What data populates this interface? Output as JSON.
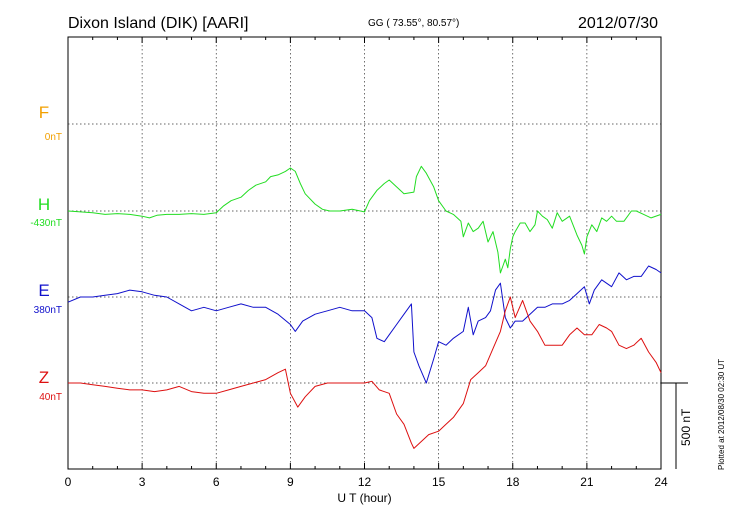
{
  "header": {
    "station": "Dixon Island (DIK)  [AARI]",
    "coords": "GG ( 73.55°,  80.57°)",
    "date": "2012/07/30"
  },
  "axis": {
    "xlabel": "U T (hour)",
    "ticks": [
      "0",
      "3",
      "6",
      "9",
      "12",
      "15",
      "18",
      "21",
      "24"
    ]
  },
  "scale": {
    "label": "500 nT"
  },
  "plotted": "Plotted at 2012/08/30 02:30 UT",
  "channels": [
    {
      "key": "F",
      "name": "F",
      "baseline": "0nT",
      "color": "#f2a000"
    },
    {
      "key": "H",
      "name": "H",
      "baseline": "-430nT",
      "color": "#22dd22"
    },
    {
      "key": "E",
      "name": "E",
      "baseline": "380nT",
      "color": "#1010cc"
    },
    {
      "key": "Z",
      "name": "Z",
      "baseline": "40nT",
      "color": "#dd1010"
    }
  ],
  "chart_data": {
    "type": "line",
    "xlabel": "U T (hour)",
    "xlim": [
      0,
      24
    ],
    "grid": true,
    "series": [
      {
        "name": "H",
        "color": "#22dd22",
        "x": [
          0,
          0.5,
          1,
          1.5,
          2,
          2.5,
          3,
          3.3,
          3.6,
          4,
          4.5,
          5,
          5.5,
          6,
          6.3,
          6.6,
          7,
          7.3,
          7.6,
          8,
          8.2,
          8.5,
          8.8,
          9,
          9.2,
          9.4,
          9.6,
          10,
          10.3,
          10.6,
          11,
          11.5,
          12,
          12.2,
          12.5,
          12.8,
          13,
          13.3,
          13.6,
          14,
          14.1,
          14.3,
          14.5,
          14.8,
          15,
          15.3,
          15.6,
          15.9,
          16,
          16.2,
          16.4,
          16.6,
          16.8,
          17,
          17.2,
          17.4,
          17.5,
          17.6,
          17.7,
          17.8,
          17.9,
          18,
          18.1,
          18.3,
          18.5,
          18.7,
          18.9,
          19,
          19.2,
          19.4,
          19.6,
          19.8,
          20,
          20.3,
          20.6,
          20.8,
          20.9,
          21,
          21.2,
          21.4,
          21.6,
          21.8,
          22,
          22.2,
          22.5,
          22.8,
          23,
          23.3,
          23.6,
          24
        ],
        "y": [
          0,
          -5,
          -10,
          -20,
          -15,
          -20,
          -30,
          -40,
          -25,
          -20,
          -20,
          -15,
          -20,
          -10,
          30,
          60,
          80,
          120,
          150,
          170,
          200,
          210,
          230,
          250,
          230,
          160,
          100,
          40,
          10,
          0,
          0,
          10,
          -5,
          60,
          120,
          160,
          180,
          140,
          100,
          110,
          200,
          260,
          220,
          140,
          60,
          0,
          -20,
          -60,
          -150,
          -70,
          -120,
          -100,
          -60,
          -180,
          -120,
          -240,
          -360,
          -320,
          -280,
          -330,
          -220,
          -150,
          -120,
          -70,
          -70,
          -120,
          -80,
          0,
          -30,
          -50,
          -100,
          -10,
          -60,
          -30,
          -140,
          -200,
          -250,
          -150,
          -80,
          -120,
          -40,
          -60,
          -30,
          -60,
          -60,
          0,
          0,
          -20,
          -40,
          -20
        ]
      },
      {
        "name": "E",
        "color": "#1010cc",
        "x": [
          0,
          0.5,
          1,
          1.5,
          2,
          2.5,
          3,
          3.5,
          4,
          4.5,
          5,
          5.5,
          6,
          6.5,
          7,
          7.5,
          8,
          8.5,
          9,
          9.2,
          9.5,
          10,
          10.5,
          11,
          11.5,
          12,
          12.3,
          12.5,
          12.8,
          13,
          13.3,
          13.6,
          13.9,
          14,
          14.2,
          14.5,
          14.8,
          15,
          15.3,
          15.6,
          16,
          16.2,
          16.4,
          16.6,
          16.9,
          17.1,
          17.3,
          17.5,
          17.7,
          17.9,
          18.1,
          18.4,
          18.7,
          19,
          19.3,
          19.6,
          20,
          20.3,
          20.6,
          20.9,
          21.1,
          21.3,
          21.6,
          22,
          22.3,
          22.6,
          22.9,
          23.2,
          23.5,
          23.8,
          24
        ],
        "y": [
          -30,
          0,
          0,
          10,
          20,
          40,
          30,
          10,
          0,
          -40,
          -80,
          -60,
          -80,
          -60,
          -40,
          -60,
          -60,
          -100,
          -160,
          -200,
          -140,
          -100,
          -80,
          -60,
          -80,
          -80,
          -120,
          -240,
          -260,
          -220,
          -160,
          -100,
          -40,
          -320,
          -400,
          -500,
          -360,
          -260,
          -280,
          -240,
          -200,
          -60,
          -220,
          -140,
          -120,
          -80,
          40,
          80,
          -120,
          -180,
          -140,
          -140,
          -100,
          -60,
          -60,
          -40,
          -40,
          -20,
          20,
          60,
          -40,
          40,
          100,
          60,
          140,
          100,
          120,
          120,
          180,
          160,
          140
        ]
      },
      {
        "name": "Z",
        "color": "#dd1010",
        "x": [
          0,
          0.5,
          1,
          1.5,
          2,
          2.5,
          3,
          3.5,
          4,
          4.5,
          5,
          5.5,
          6,
          6.5,
          7,
          7.5,
          8,
          8.5,
          8.8,
          9,
          9.3,
          9.6,
          10,
          10.5,
          11,
          11.5,
          12,
          12.3,
          12.6,
          13,
          13.3,
          13.6,
          13.9,
          14,
          14.3,
          14.6,
          15,
          15.3,
          15.6,
          16,
          16.3,
          16.6,
          16.9,
          17.2,
          17.5,
          17.7,
          17.9,
          18.1,
          18.4,
          18.7,
          19,
          19.3,
          19.6,
          20,
          20.3,
          20.6,
          20.9,
          21.2,
          21.5,
          21.8,
          22,
          22.3,
          22.6,
          22.9,
          23.2,
          23.5,
          23.8,
          24
        ],
        "y": [
          0,
          0,
          -10,
          -20,
          -30,
          -40,
          -40,
          -50,
          -40,
          -20,
          -50,
          -60,
          -60,
          -40,
          -20,
          0,
          20,
          60,
          80,
          -60,
          -140,
          -80,
          -20,
          0,
          0,
          0,
          0,
          10,
          -40,
          -60,
          -180,
          -240,
          -350,
          -380,
          -340,
          -300,
          -280,
          -240,
          -200,
          -120,
          20,
          60,
          100,
          200,
          300,
          420,
          500,
          380,
          480,
          360,
          300,
          220,
          220,
          220,
          280,
          320,
          280,
          280,
          340,
          320,
          300,
          220,
          200,
          220,
          260,
          180,
          120,
          60
        ]
      }
    ],
    "offsets": {
      "H": -430,
      "E": 380,
      "Z": 40
    },
    "scale_bar_nT": 500
  }
}
